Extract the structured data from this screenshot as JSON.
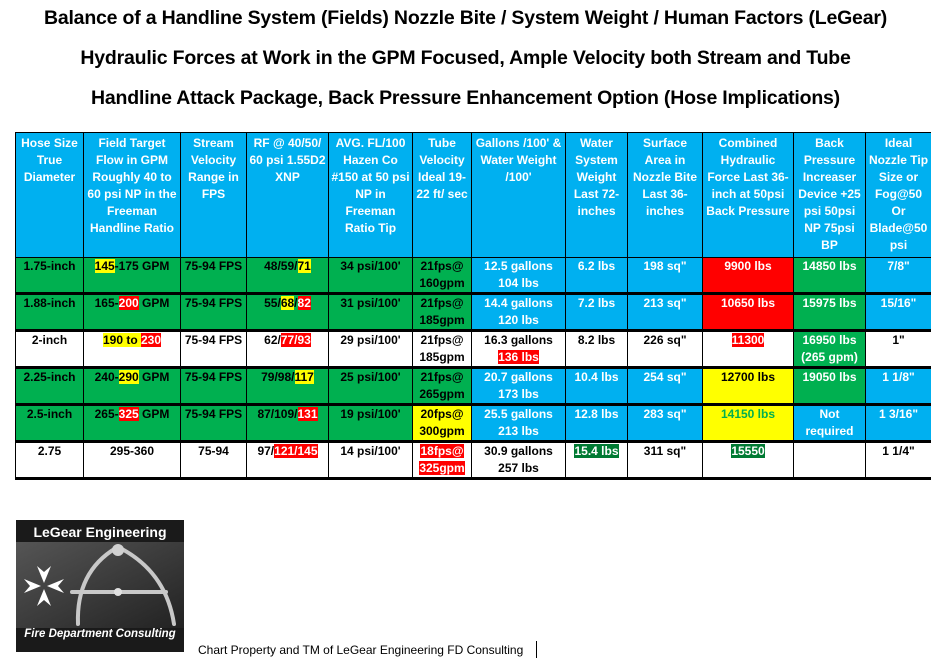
{
  "titles": [
    "Balance of a Handline System (Fields) Nozzle Bite / System Weight / Human Factors (LeGear)",
    "Hydraulic Forces at Work in the GPM Focused, Ample Velocity both Stream and Tube",
    "Handline Attack Package, Back Pressure Enhancement Option (Hose Implications)"
  ],
  "headers": [
    "Hose Size True Diameter",
    "Field Target Flow in GPM Roughly 40 to 60 psi NP in the Freeman Handline Ratio",
    "Stream Velocity Range in FPS",
    "RF @ 40/50/ 60 psi 1.55D2 XNP",
    "AVG. FL/100 Hazen Co #150 at 50 psi NP in Freeman Ratio Tip",
    "Tube Velocity Ideal 19-22 ft/ sec",
    "Gallons /100' & Water Weight /100'",
    "Water System Weight Last 72-inches",
    "Surface Area in Nozzle Bite Last 36-inches",
    "Combined Hydraulic Force Last 36-inch at 50psi Back Pressure",
    "Back Pressure Increaser Device +25 psi 50psi NP 75psi BP",
    "Ideal Nozzle Tip Size or Fog@50 Or Blade@50 psi"
  ],
  "rows": [
    {
      "hose": "1.75-inch",
      "flow_a": "145",
      "flow_b": "-175 GPM",
      "velocity": "75-94 FPS",
      "rf_a": "48/59/",
      "rf_b": "71",
      "rf_c": "",
      "fl": "34 psi/100'",
      "tube_a": "21fps@",
      "tube_b": "160gpm",
      "gal_a": "12.5 gallons",
      "gal_b": "104 lbs",
      "water_weight": "6.2 lbs",
      "surface": "198 sq\"",
      "combined": "9900 lbs",
      "back": "14850 lbs",
      "tip": "7/8\""
    },
    {
      "hose": "1.88-inch",
      "flow_a": "165-",
      "flow_b": "200",
      "flow_c": " GPM",
      "velocity": "75-94 FPS",
      "rf_a": "55/",
      "rf_b": "68",
      "rf_c": "/",
      "rf_d": "82",
      "fl": "31 psi/100'",
      "tube_a": "21fps@",
      "tube_b": "185gpm",
      "gal_a": "14.4 gallons",
      "gal_b": "120 lbs",
      "water_weight": "7.2 lbs",
      "surface": "213 sq\"",
      "combined": "10650 lbs",
      "back": "15975 lbs",
      "tip": "15/16\""
    },
    {
      "hose": "2-inch",
      "flow_a": "190 to ",
      "flow_b": "230",
      "velocity": "75-94 FPS",
      "rf_a": "62/",
      "rf_b": "77/93",
      "fl": "29 psi/100'",
      "tube_a": "21fps@",
      "tube_b": "185gpm",
      "gal_a": "16.3 gallons",
      "gal_b": "136 lbs",
      "water_weight": "8.2 lbs",
      "surface": "226 sq\"",
      "combined": "11300",
      "back": "16950 lbs (265 gpm)",
      "tip": "1\""
    },
    {
      "hose": "2.25-inch",
      "flow_a": "240-",
      "flow_b": "290",
      "flow_c": " GPM",
      "velocity": "75-94 FPS",
      "rf_a": "79/98/",
      "rf_b": "117",
      "fl": "25 psi/100'",
      "tube_a": "21fps@",
      "tube_b": "265gpm",
      "gal_a": "20.7 gallons",
      "gal_b": "173 lbs",
      "water_weight": "10.4 lbs",
      "surface": "254 sq\"",
      "combined": "12700 lbs",
      "back": "19050 lbs",
      "tip": "1 1/8\""
    },
    {
      "hose": "2.5-inch",
      "flow_a": "265-",
      "flow_b": "325",
      "flow_c": " GPM",
      "velocity": "75-94 FPS",
      "rf_a": "87/109/",
      "rf_b": "131",
      "fl": "19 psi/100'",
      "tube_a": "20fps@",
      "tube_b": "300gpm",
      "gal_a": "25.5 gallons",
      "gal_b": "213 lbs",
      "water_weight": "12.8 lbs",
      "surface": "283 sq\"",
      "combined": "14150 lbs",
      "back": "Not required",
      "tip": "1 3/16\""
    },
    {
      "hose": "2.75",
      "flow_a": "295-360",
      "velocity": "75-94",
      "rf_a": "97/",
      "rf_b": "121/145",
      "fl": "14 psi/100'",
      "tube_a": "18fps@",
      "tube_b": "325gpm",
      "gal_a": "30.9 gallons",
      "gal_b": "257 lbs",
      "water_weight": "15.4 lbs",
      "surface": "311 sq\"",
      "combined": "15550",
      "back": "",
      "tip": "1 1/4\""
    }
  ],
  "logo": {
    "top_text": "LeGear Engineering",
    "bottom_text": "Fire Department Consulting"
  },
  "footer": "Chart Property and TM of LeGear Engineering FD Consulting",
  "colors": {
    "header_blue": "#00b0f0",
    "green": "#00b050",
    "yellow": "#ffff00",
    "red": "#ff0000",
    "dark_green": "#007a33"
  }
}
